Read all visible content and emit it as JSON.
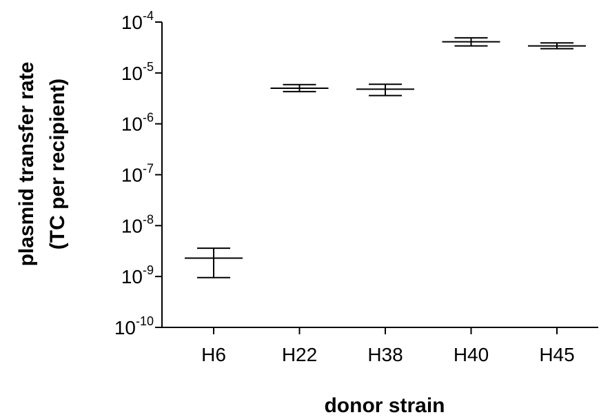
{
  "chart_data": {
    "type": "scatter",
    "xlabel": "donor strain",
    "ylabel": [
      "plasmid transfer rate",
      "(TC per recipient)"
    ],
    "yscale": "log",
    "ylim": [
      1e-10,
      0.0001
    ],
    "y_ticks": [
      {
        "value": 0.0001,
        "base": "10",
        "exp": "-4"
      },
      {
        "value": 1e-05,
        "base": "10",
        "exp": "-5"
      },
      {
        "value": 1e-06,
        "base": "10",
        "exp": "-6"
      },
      {
        "value": 1e-07,
        "base": "10",
        "exp": "-7"
      },
      {
        "value": 1e-08,
        "base": "10",
        "exp": "-8"
      },
      {
        "value": 1e-09,
        "base": "10",
        "exp": "-9"
      },
      {
        "value": 1e-10,
        "base": "10",
        "exp": "-10"
      }
    ],
    "categories": [
      "H6",
      "H22",
      "H38",
      "H40",
      "H45"
    ],
    "points": [
      {
        "category": "H6",
        "mean": 2.3e-09,
        "upper": 3.6e-09,
        "lower": 9.5e-10
      },
      {
        "category": "H22",
        "mean": 5e-06,
        "upper": 5.9e-06,
        "lower": 4.3e-06
      },
      {
        "category": "H38",
        "mean": 4.8e-06,
        "upper": 6e-06,
        "lower": 3.6e-06
      },
      {
        "category": "H40",
        "mean": 4.1e-05,
        "upper": 4.9e-05,
        "lower": 3.4e-05
      },
      {
        "category": "H45",
        "mean": 3.4e-05,
        "upper": 3.9e-05,
        "lower": 3e-05
      }
    ],
    "grid": false,
    "colors": {
      "marks": "#000000",
      "background": "#ffffff"
    }
  }
}
